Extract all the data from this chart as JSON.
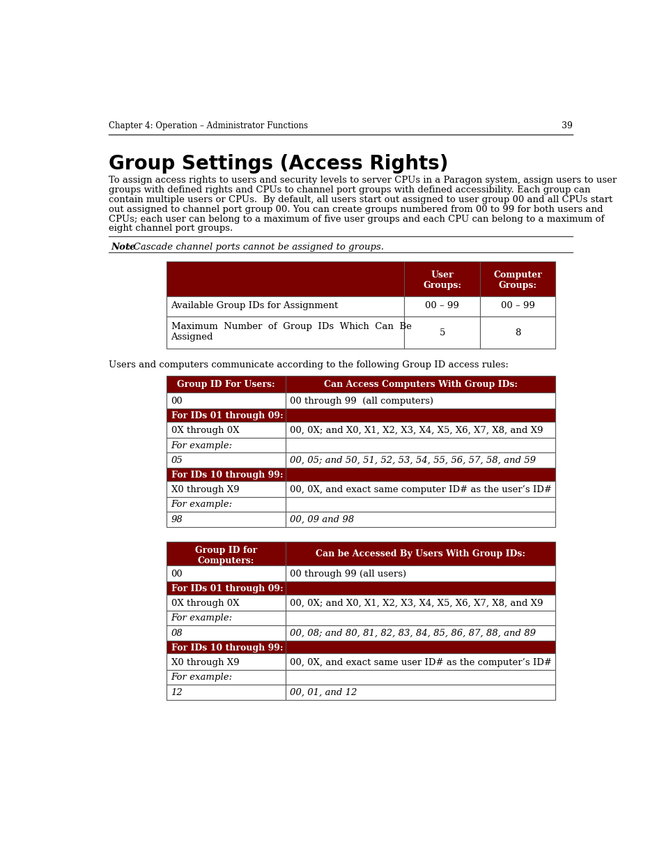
{
  "page_bg": "#ffffff",
  "header_text": "Chapter 4: Operation – Administrator Functions",
  "page_num": "39",
  "section_title": "Group Settings (Access Rights)",
  "body_text": "To assign access rights to users and security levels to server CPUs in a Paragon system, assign users to user\ngroups with defined rights and CPUs to channel port groups with defined accessibility. Each group can\ncontain multiple users or CPUs.  By default, all users start out assigned to user group 00 and all CPUs start\nout assigned to channel port group 00. You can create groups numbered from 00 to 99 for both users and\nCPUs; each user can belong to a maximum of five user groups and each CPU can belong to a maximum of\neight channel port groups.",
  "note_text": "Note: Cascade channel ports cannot be assigned to groups.",
  "dark_red": "#7b0000",
  "white": "#ffffff",
  "black": "#000000",
  "table2_header": [
    "Group ID For Users:",
    "Can Access Computers With Group IDs:"
  ],
  "table2_rows": [
    [
      "normal",
      "00",
      "00 through 99  (all computers)"
    ],
    [
      "dark_red",
      "For IDs 01 through 09:",
      ""
    ],
    [
      "normal",
      "0X through 0X",
      "00, 0X; and X0, X1, X2, X3, X4, X5, X6, X7, X8, and X9"
    ],
    [
      "italic",
      "For example:",
      ""
    ],
    [
      "italic",
      "05",
      "00, 05; and 50, 51, 52, 53, 54, 55, 56, 57, 58, and 59"
    ],
    [
      "dark_red",
      "For IDs 10 through 99:",
      ""
    ],
    [
      "normal",
      "X0 through X9",
      "00, 0X, and exact same computer ID# as the user’s ID#"
    ],
    [
      "italic",
      "For example:",
      ""
    ],
    [
      "italic",
      "98",
      "00, 09 and 98"
    ]
  ],
  "table3_header": [
    "Group ID for\nComputers:",
    "Can be Accessed By Users With Group IDs:"
  ],
  "table3_rows": [
    [
      "normal",
      "00",
      "00 through 99 (all users)"
    ],
    [
      "dark_red",
      "For IDs 01 through 09:",
      ""
    ],
    [
      "normal",
      "0X through 0X",
      "00, 0X; and X0, X1, X2, X3, X4, X5, X6, X7, X8, and X9"
    ],
    [
      "italic",
      "For example:",
      ""
    ],
    [
      "italic",
      "08",
      "00, 08; and 80, 81, 82, 83, 84, 85, 86, 87, 88, and 89"
    ],
    [
      "dark_red",
      "For IDs 10 through 99:",
      ""
    ],
    [
      "normal",
      "X0 through X9",
      "00, 0X, and exact same user ID# as the computer’s ID#"
    ],
    [
      "italic",
      "For example:",
      ""
    ],
    [
      "italic",
      "12",
      "00, 01, and 12"
    ]
  ]
}
